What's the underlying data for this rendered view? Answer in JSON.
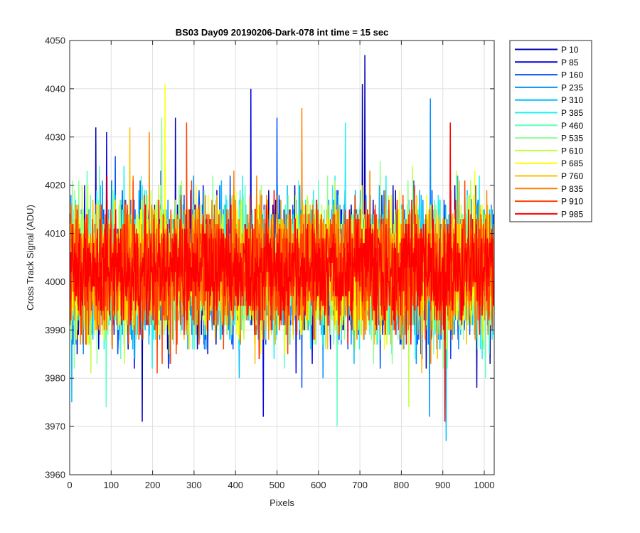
{
  "chart_data": {
    "type": "line",
    "title": "BS03 Day09 20190206-Dark-078 int time = 15 sec",
    "xlabel": "Pixels",
    "ylabel": "Cross Track Signal (ADU)",
    "xlim": [
      0,
      1024
    ],
    "ylim": [
      3960,
      4050
    ],
    "xticks": [
      0,
      100,
      200,
      300,
      400,
      500,
      600,
      700,
      800,
      900,
      1000
    ],
    "yticks": [
      3960,
      3970,
      3980,
      3990,
      4000,
      4010,
      4020,
      4030,
      4040,
      4050
    ],
    "grid": true,
    "legend_position": "outside-top-right",
    "n_points": 1024,
    "series": [
      {
        "name": "P 10",
        "color": "#0000b0",
        "mean": 4002.5,
        "sd": 6.5,
        "highlights": [
          [
            63,
            4032
          ],
          [
            175,
            3971
          ],
          [
            255,
            4034
          ],
          [
            706,
            4041
          ],
          [
            712,
            4047
          ]
        ]
      },
      {
        "name": "P 85",
        "color": "#0000e0",
        "mean": 4002.5,
        "sd": 6.5,
        "highlights": [
          [
            89,
            4031
          ],
          [
            437,
            4040
          ],
          [
            467,
            3972
          ]
        ]
      },
      {
        "name": "P 160",
        "color": "#0050ff",
        "mean": 4002.5,
        "sd": 6.5,
        "highlights": [
          [
            500,
            4034
          ],
          [
            560,
            3978
          ]
        ]
      },
      {
        "name": "P 235",
        "color": "#0090ff",
        "mean": 4002.5,
        "sd": 6.5,
        "highlights": [
          [
            870,
            4038
          ],
          [
            868,
            3972
          ]
        ]
      },
      {
        "name": "P 310",
        "color": "#00c0ff",
        "mean": 4002.5,
        "sd": 6.5,
        "highlights": [
          [
            908,
            3967
          ],
          [
            5,
            3975
          ]
        ]
      },
      {
        "name": "P 385",
        "color": "#20f0f0",
        "mean": 4002.5,
        "sd": 6.5,
        "highlights": [
          [
            665,
            4033
          ]
        ]
      },
      {
        "name": "P 460",
        "color": "#60ffc0",
        "mean": 4002.5,
        "sd": 6.5,
        "highlights": [
          [
            645,
            3970
          ],
          [
            88,
            3974
          ]
        ]
      },
      {
        "name": "P 535",
        "color": "#90ff90",
        "mean": 4002.5,
        "sd": 6.5,
        "highlights": [
          [
            222,
            4034
          ]
        ]
      },
      {
        "name": "P 610",
        "color": "#c0ff40",
        "mean": 4002.5,
        "sd": 6.5,
        "highlights": [
          [
            818,
            3974
          ]
        ]
      },
      {
        "name": "P 685",
        "color": "#ffff00",
        "mean": 4002.5,
        "sd": 6.5,
        "highlights": [
          [
            230,
            4041
          ]
        ]
      },
      {
        "name": "P 760",
        "color": "#ffc000",
        "mean": 4002.5,
        "sd": 6.5,
        "highlights": [
          [
            145,
            4032
          ]
        ]
      },
      {
        "name": "P 835",
        "color": "#ff8000",
        "mean": 4002.5,
        "sd": 6.5,
        "highlights": [
          [
            560,
            4036
          ],
          [
            192,
            4031
          ]
        ]
      },
      {
        "name": "P 910",
        "color": "#ff4000",
        "mean": 4002.5,
        "sd": 6.5,
        "highlights": [
          [
            282,
            4033
          ]
        ]
      },
      {
        "name": "P 985",
        "color": "#ff0000",
        "mean": 4002.5,
        "sd": 5.5,
        "highlights": [
          [
            918,
            4033
          ],
          [
            905,
            3971
          ]
        ]
      }
    ]
  }
}
